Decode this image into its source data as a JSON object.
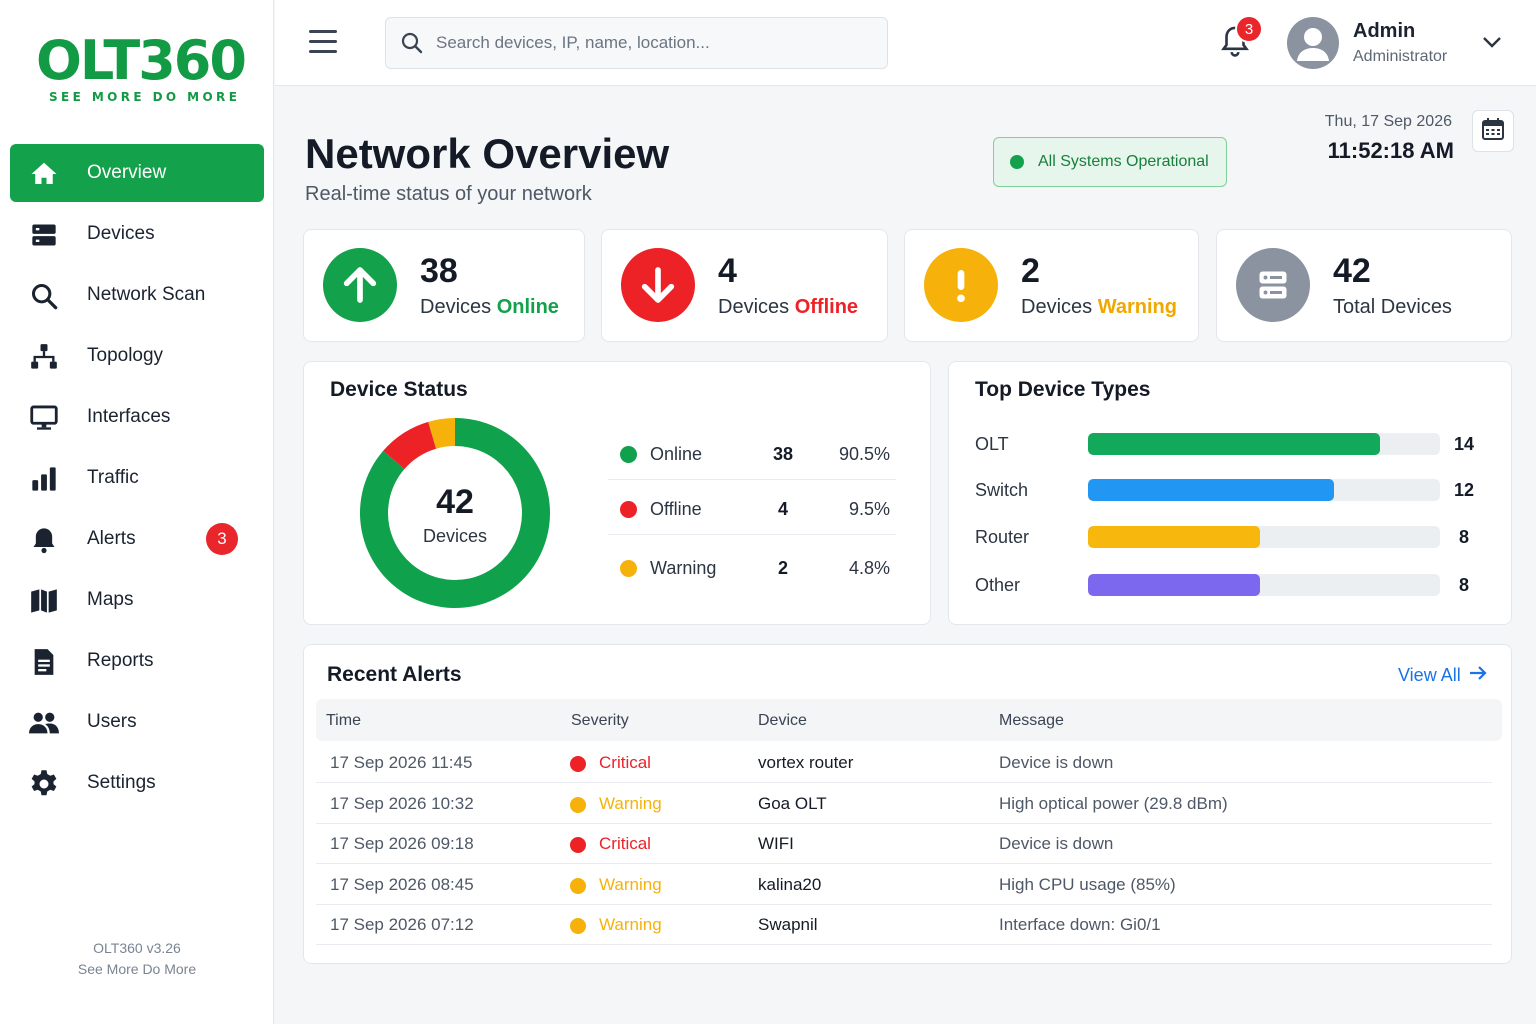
{
  "brand": {
    "name": "OLT360",
    "tagline": "SEE MORE DO MORE",
    "color": "#129a45"
  },
  "sidebar": {
    "items": [
      {
        "label": "Overview",
        "icon": "home-icon",
        "active": true
      },
      {
        "label": "Devices",
        "icon": "server-icon"
      },
      {
        "label": "Network Scan",
        "icon": "search-icon"
      },
      {
        "label": "Topology",
        "icon": "topology-icon"
      },
      {
        "label": "Interfaces",
        "icon": "monitor-icon"
      },
      {
        "label": "Traffic",
        "icon": "bar-chart-icon"
      },
      {
        "label": "Alerts",
        "icon": "bell-icon",
        "badge": "3"
      },
      {
        "label": "Maps",
        "icon": "map-icon"
      },
      {
        "label": "Reports",
        "icon": "document-icon"
      },
      {
        "label": "Users",
        "icon": "users-icon"
      },
      {
        "label": "Settings",
        "icon": "gear-icon"
      }
    ],
    "version": "OLT360 v3.26",
    "version_tagline": "See More Do More"
  },
  "topbar": {
    "search_placeholder": "Search devices, IP, name, location...",
    "notification_count": "3",
    "user": {
      "name": "Admin",
      "role": "Administrator"
    }
  },
  "header": {
    "title": "Network Overview",
    "subtitle": "Real-time status of your network",
    "status": "All Systems Operational",
    "date": "Thu, 17 Sep 2026",
    "time": "11:52:18 AM"
  },
  "stats": [
    {
      "value": "38",
      "label_prefix": "Devices ",
      "label_highlight": "Online",
      "color": "#13a14b",
      "icon": "arrow-up-icon"
    },
    {
      "value": "4",
      "label_prefix": "Devices ",
      "label_highlight": "Offline",
      "color": "#ec2227",
      "icon": "arrow-down-icon"
    },
    {
      "value": "2",
      "label_prefix": "Devices ",
      "label_highlight": "Warning",
      "color": "#f6b20a",
      "icon": "exclamation-icon"
    },
    {
      "value": "42",
      "label_prefix": "Total Devices",
      "label_highlight": "",
      "color": "#8a939f",
      "icon": "server-icon"
    }
  ],
  "device_status": {
    "title": "Device Status",
    "total": "42",
    "total_label": "Devices",
    "rows": [
      {
        "name": "Online",
        "count": "38",
        "percent": "90.5%",
        "color": "#0fa14c"
      },
      {
        "name": "Offline",
        "count": "4",
        "percent": "9.5%",
        "color": "#ec2227"
      },
      {
        "name": "Warning",
        "count": "2",
        "percent": "4.8%",
        "color": "#f6b20a"
      }
    ]
  },
  "chart_data": [
    {
      "type": "pie",
      "categories": [
        "Online",
        "Offline",
        "Warning"
      ],
      "values": [
        38,
        4,
        2
      ],
      "colors": [
        "#0fa14c",
        "#ec2227",
        "#f6b20a"
      ]
    },
    {
      "type": "bar",
      "title": "Top Device Types",
      "categories": [
        "OLT",
        "Switch",
        "Router",
        "Other"
      ],
      "values": [
        14,
        12,
        8,
        8
      ],
      "fill_fraction": [
        0.83,
        0.7,
        0.49,
        0.49
      ],
      "colors": [
        "#13a95a",
        "#2196f3",
        "#f8b70d",
        "#7b68ee"
      ]
    }
  ],
  "alerts": {
    "title": "Recent Alerts",
    "view_all": "View All",
    "columns": [
      "Time",
      "Severity",
      "Device",
      "Message"
    ],
    "rows": [
      {
        "time": "17 Sep 2026 11:45",
        "severity": "Critical",
        "device": "vortex router",
        "message": "Device is down"
      },
      {
        "time": "17 Sep 2026 10:32",
        "severity": "Warning",
        "device": "Goa OLT",
        "message": "High optical power (29.8 dBm)"
      },
      {
        "time": "17 Sep 2026 09:18",
        "severity": "Critical",
        "device": "WIFI",
        "message": "Device is down"
      },
      {
        "time": "17 Sep 2026 08:45",
        "severity": "Warning",
        "device": "kalina20",
        "message": "High CPU usage (85%)"
      },
      {
        "time": "17 Sep 2026 07:12",
        "severity": "Warning",
        "device": "Swapnil",
        "message": "Interface down: Gi0/1"
      }
    ],
    "severity_colors": {
      "Critical": "#ec2227",
      "Warning": "#f6b20a"
    }
  }
}
